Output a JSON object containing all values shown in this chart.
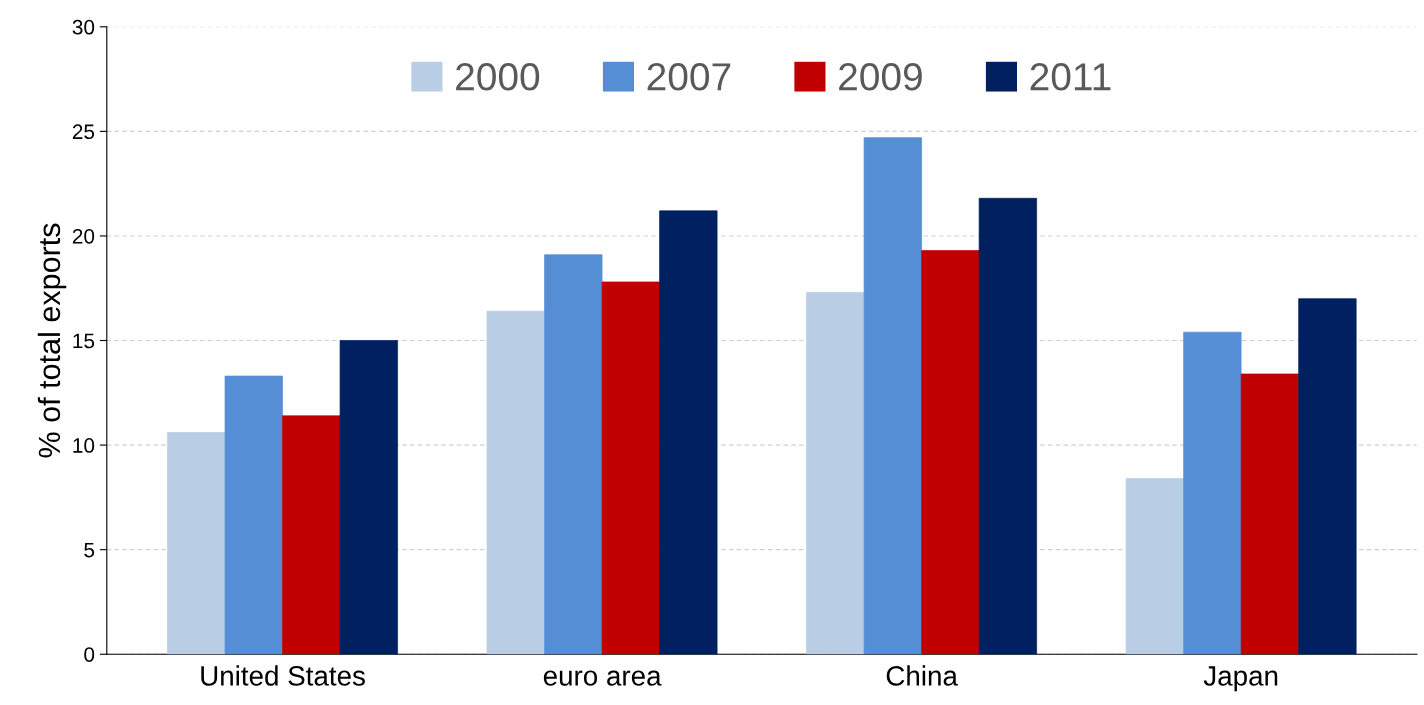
{
  "chart_data": {
    "type": "bar",
    "ylabel": "% of total exports",
    "categories": [
      "United States",
      "euro area",
      "China",
      "Japan"
    ],
    "series": [
      {
        "name": "2000",
        "color": "#b9cde5",
        "values": [
          10.6,
          16.4,
          17.3,
          8.4
        ]
      },
      {
        "name": "2007",
        "color": "#558ed5",
        "values": [
          13.3,
          19.1,
          24.7,
          15.4
        ]
      },
      {
        "name": "2009",
        "color": "#c00000",
        "values": [
          11.4,
          17.8,
          19.3,
          13.4
        ]
      },
      {
        "name": "2011",
        "color": "#002060",
        "values": [
          15.0,
          21.2,
          21.8,
          17.0
        ]
      }
    ],
    "ylim": [
      0,
      30
    ],
    "yticks": [
      0,
      5,
      10,
      15,
      20,
      25,
      30
    ],
    "grid": "y",
    "legend": "top"
  }
}
